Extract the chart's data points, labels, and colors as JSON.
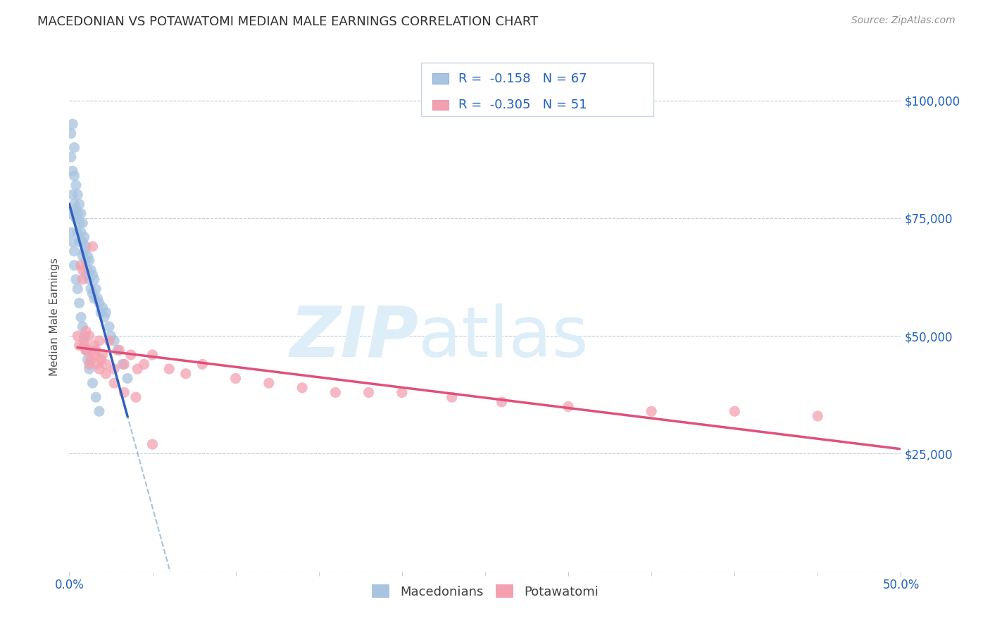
{
  "title": "MACEDONIAN VS POTAWATOMI MEDIAN MALE EARNINGS CORRELATION CHART",
  "source": "Source: ZipAtlas.com",
  "ylabel": "Median Male Earnings",
  "xlim": [
    0.0,
    0.5
  ],
  "ylim": [
    0,
    108000
  ],
  "macedonian_color": "#a8c4e0",
  "potawatomi_color": "#f4a0b0",
  "macedonian_line_color": "#3060c0",
  "potawatomi_line_color": "#e0507a",
  "dashed_line_color": "#90b4d0",
  "mac_x": [
    0.001,
    0.001,
    0.002,
    0.002,
    0.002,
    0.003,
    0.003,
    0.003,
    0.004,
    0.004,
    0.004,
    0.005,
    0.005,
    0.005,
    0.006,
    0.006,
    0.006,
    0.007,
    0.007,
    0.008,
    0.008,
    0.008,
    0.009,
    0.009,
    0.01,
    0.01,
    0.01,
    0.011,
    0.011,
    0.012,
    0.012,
    0.013,
    0.013,
    0.014,
    0.014,
    0.015,
    0.015,
    0.016,
    0.017,
    0.018,
    0.019,
    0.02,
    0.021,
    0.022,
    0.024,
    0.025,
    0.027,
    0.029,
    0.032,
    0.035,
    0.001,
    0.001,
    0.002,
    0.003,
    0.003,
    0.004,
    0.005,
    0.006,
    0.007,
    0.008,
    0.009,
    0.01,
    0.011,
    0.012,
    0.014,
    0.016,
    0.018
  ],
  "mac_y": [
    93000,
    88000,
    95000,
    85000,
    80000,
    90000,
    84000,
    78000,
    82000,
    77000,
    75000,
    80000,
    76000,
    72000,
    78000,
    74000,
    70000,
    76000,
    72000,
    74000,
    70000,
    67000,
    71000,
    68000,
    69000,
    66000,
    63000,
    67000,
    64000,
    66000,
    62000,
    64000,
    60000,
    63000,
    59000,
    62000,
    58000,
    60000,
    58000,
    57000,
    55000,
    56000,
    54000,
    55000,
    52000,
    50000,
    49000,
    47000,
    44000,
    41000,
    76000,
    72000,
    70000,
    68000,
    65000,
    62000,
    60000,
    57000,
    54000,
    52000,
    50000,
    47000,
    45000,
    43000,
    40000,
    37000,
    34000
  ],
  "pot_x": [
    0.005,
    0.006,
    0.007,
    0.008,
    0.009,
    0.01,
    0.011,
    0.012,
    0.013,
    0.014,
    0.015,
    0.016,
    0.017,
    0.018,
    0.019,
    0.02,
    0.022,
    0.024,
    0.027,
    0.03,
    0.033,
    0.037,
    0.041,
    0.045,
    0.05,
    0.06,
    0.07,
    0.08,
    0.1,
    0.12,
    0.14,
    0.16,
    0.18,
    0.2,
    0.23,
    0.26,
    0.3,
    0.35,
    0.4,
    0.45,
    0.008,
    0.009,
    0.01,
    0.012,
    0.015,
    0.018,
    0.022,
    0.027,
    0.033,
    0.04,
    0.05
  ],
  "pot_y": [
    50000,
    48000,
    65000,
    62000,
    49000,
    51000,
    47000,
    50000,
    45000,
    69000,
    48000,
    47000,
    44000,
    49000,
    45000,
    46000,
    44000,
    49000,
    43000,
    47000,
    44000,
    46000,
    43000,
    44000,
    46000,
    43000,
    42000,
    44000,
    41000,
    40000,
    39000,
    38000,
    38000,
    38000,
    37000,
    36000,
    35000,
    34000,
    34000,
    33000,
    64000,
    48000,
    47000,
    44000,
    46000,
    43000,
    42000,
    40000,
    38000,
    37000,
    27000
  ]
}
